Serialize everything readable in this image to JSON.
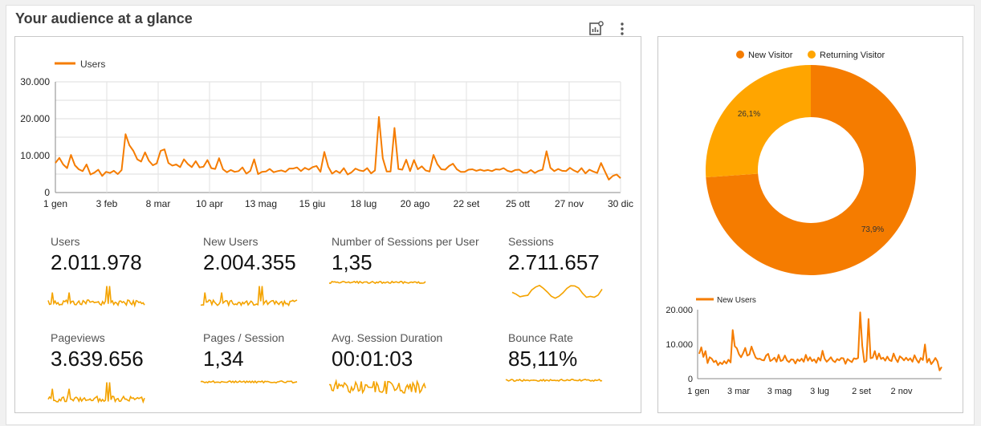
{
  "header": {
    "title": "Your audience at a glance"
  },
  "toolbar": {
    "icons": [
      "chart-insights-icon",
      "more-vert-icon"
    ]
  },
  "colors": {
    "primary": "#f57c00",
    "secondary": "#ffa500",
    "spark": "#f4a300",
    "grid": "#d9d9d9"
  },
  "metrics": [
    {
      "label": "Users",
      "value": "2.011.978"
    },
    {
      "label": "New Users",
      "value": "2.004.355"
    },
    {
      "label": "Number of Sessions per User",
      "value": "1,35"
    },
    {
      "label": "Sessions",
      "value": "2.711.657"
    },
    {
      "label": "Pageviews",
      "value": "3.639.656"
    },
    {
      "label": "Pages / Session",
      "value": "1,34"
    },
    {
      "label": "Avg. Session Duration",
      "value": "00:01:03"
    },
    {
      "label": "Bounce Rate",
      "value": "85,11%"
    }
  ],
  "chart_data": [
    {
      "type": "line",
      "title": "",
      "legend": "top-left",
      "series": [
        {
          "name": "Users",
          "values": [
            8000,
            9400,
            7600,
            6600,
            10200,
            7400,
            6300,
            5800,
            7600,
            4900,
            5400,
            6200,
            4500,
            5600,
            5300,
            5900,
            5000,
            6100,
            15800,
            12800,
            11300,
            9000,
            8400,
            10900,
            8600,
            7400,
            7900,
            11300,
            11700,
            8000,
            7300,
            7600,
            6900,
            9000,
            7700,
            6900,
            8500,
            6800,
            7000,
            8800,
            6600,
            6400,
            9300,
            6300,
            5500,
            6100,
            5600,
            5800,
            6800,
            5100,
            5900,
            9000,
            5000,
            5600,
            5700,
            6400,
            5500,
            5800,
            6000,
            5600,
            6500,
            6500,
            6800,
            5800,
            6700,
            6200,
            6900,
            7200,
            5600,
            11000,
            7000,
            5100,
            5900,
            5300,
            6600,
            4900,
            5500,
            6500,
            6000,
            5800,
            6600,
            5200,
            6000,
            20500,
            9300,
            5700,
            5700,
            17500,
            6400,
            6200,
            8900,
            5800,
            8800,
            6300,
            7100,
            6000,
            5700,
            10200,
            7700,
            6300,
            6200,
            7200,
            7800,
            6300,
            5600,
            5600,
            6200,
            6300,
            5900,
            6200,
            5900,
            6100,
            5800,
            6300,
            6200,
            6600,
            5900,
            5600,
            6100,
            6200,
            5400,
            5400,
            6100,
            5300,
            5900,
            6200,
            11200,
            6700,
            5800,
            6400,
            5900,
            5800,
            6700,
            6000,
            5500,
            6600,
            5200,
            6200,
            5700,
            5300,
            8000,
            5700,
            3500,
            4500,
            4900,
            3900
          ]
        }
      ],
      "x_tick_labels": [
        "1 gen",
        "3 feb",
        "8 mar",
        "10 apr",
        "13 mag",
        "15 giu",
        "18 lug",
        "20 ago",
        "22 set",
        "25 ott",
        "27 nov",
        "30 dic"
      ],
      "y_tick_labels": [
        "0",
        "10.000",
        "20.000",
        "30.000"
      ],
      "ylim": [
        0,
        30000
      ],
      "grid": true
    },
    {
      "type": "pie",
      "legend": "top",
      "categories": [
        "New Visitor",
        "Returning Visitor"
      ],
      "values": [
        73.9,
        26.1
      ],
      "labels": [
        "73,9%",
        "26,1%"
      ],
      "donut": true
    },
    {
      "type": "line",
      "legend": "top-left",
      "series": [
        {
          "name": "New Users",
          "values": [
            7200,
            9100,
            6300,
            8000,
            4500,
            6200,
            5800,
            4800,
            5200,
            3900,
            4700,
            4200,
            5100,
            4400,
            5500,
            4700,
            14100,
            9400,
            8800,
            7100,
            6200,
            7400,
            8900,
            6700,
            7000,
            9300,
            7600,
            6100,
            5700,
            5800,
            5400,
            5300,
            6700,
            7200,
            5100,
            5500,
            6100,
            4900,
            6900,
            5100,
            5400,
            6700,
            5300,
            4800,
            5600,
            5500,
            4400,
            5600,
            5100,
            5800,
            4900,
            6900,
            5200,
            6200,
            5100,
            5600,
            4600,
            6100,
            5200,
            8100,
            5800,
            4900,
            5500,
            6200,
            5200,
            4800,
            5700,
            5300,
            6000,
            5900,
            4300,
            5700,
            5200,
            4800,
            5900,
            5700,
            6000,
            19200,
            9500,
            4800,
            5200,
            17300,
            5900,
            6100,
            8000,
            5600,
            7300,
            5700,
            6100,
            5200,
            6400,
            5400,
            5100,
            7300,
            5800,
            4800,
            6500,
            6000,
            5300,
            6100,
            5300,
            5900,
            4900,
            6800,
            5500,
            4600,
            6000,
            5400,
            9900,
            4700,
            5800,
            4200,
            5000,
            6000,
            5000,
            2400,
            3400
          ]
        }
      ],
      "x_tick_labels": [
        "1 gen",
        "3 mar",
        "3 mag",
        "3 lug",
        "2 set",
        "2 nov"
      ],
      "y_tick_labels": [
        "0",
        "10.000",
        "20.000"
      ],
      "ylim": [
        0,
        20000
      ],
      "grid": false
    }
  ]
}
